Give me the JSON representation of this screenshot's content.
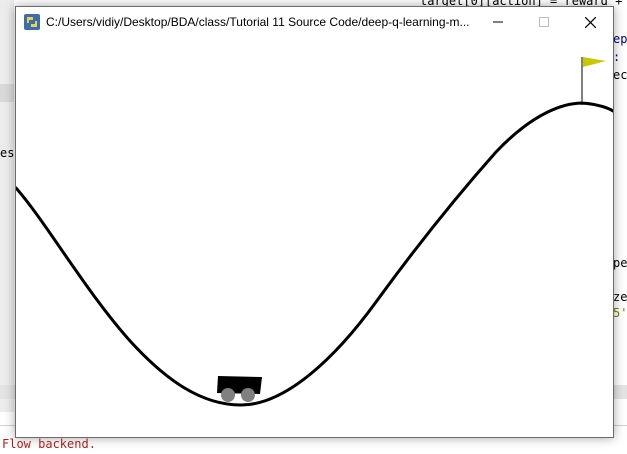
{
  "window": {
    "title": "C:/Users/vidiy/Desktop/BDA/class/Tutorial 11 Source Code/deep-q-learning-m...",
    "minimize_glyph": "—",
    "maximize_glyph": "☐",
    "close_glyph": "✕"
  },
  "background_ide": {
    "console_text": "Flow backend.",
    "left_fragment": "es",
    "right_fragments": [
      "target[0][action] = reward +",
      "ep",
      ":",
      "ec",
      "pe",
      "ze",
      "5'"
    ]
  },
  "scene": {
    "environment": "mountain-car",
    "flag_color": "#c8c800",
    "car_color": "#000000",
    "wheel_color": "#808080"
  },
  "icons": {
    "app": "python-icon",
    "minimize": "minimize-icon",
    "maximize": "maximize-icon",
    "close": "close-icon"
  }
}
